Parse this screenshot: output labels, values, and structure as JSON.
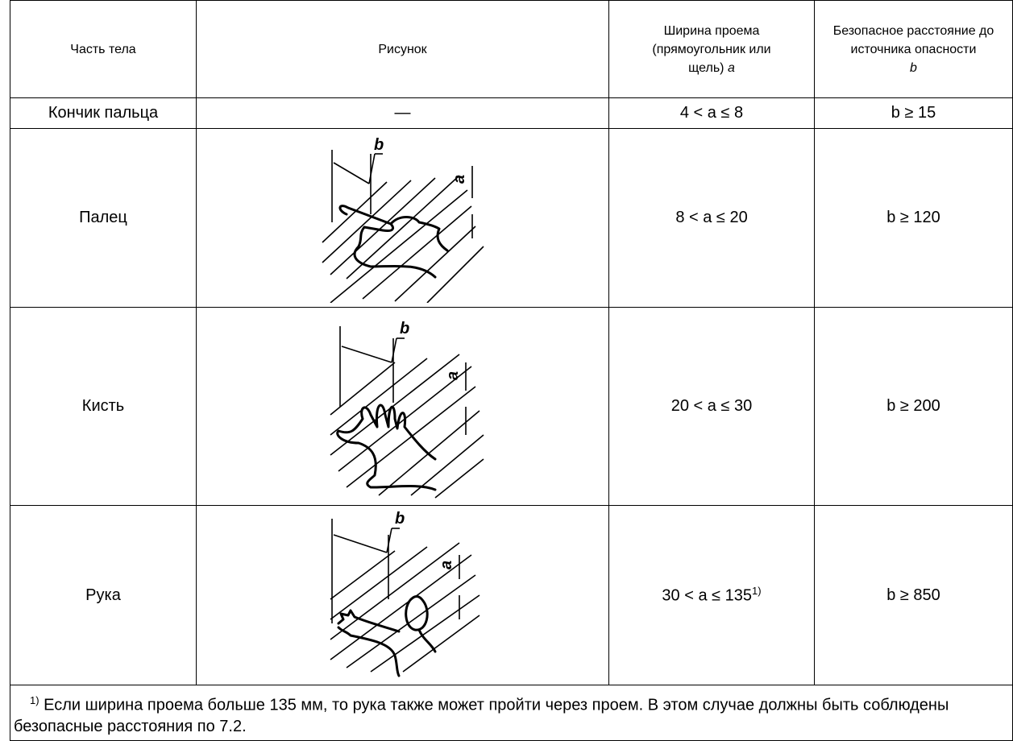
{
  "table": {
    "header": [
      {
        "text": "Часть тела"
      },
      {
        "text": "Рисунок"
      },
      {
        "text": "Ширина проема (прямоугольник или щель)",
        "symbol": "a"
      },
      {
        "text": "Безопасное расстояние до источника опасности",
        "symbol": "b"
      }
    ],
    "rows": [
      {
        "part": "Кончик пальца",
        "figure": "—",
        "opening": "4 < a ≤ 8",
        "distance": "b ≥ 15"
      },
      {
        "part": "Палец",
        "figure_labels": [
          "b",
          "a"
        ],
        "opening": "8 < a ≤ 20",
        "distance": "b ≥ 120"
      },
      {
        "part": "Кисть",
        "figure_labels": [
          "b",
          "a"
        ],
        "opening": "20 < a ≤ 30",
        "distance": "b ≥ 200"
      },
      {
        "part": "Рука",
        "figure_labels": [
          "b",
          "a"
        ],
        "opening": "30 < a ≤ 135",
        "opening_note": "1)",
        "distance": "b ≥ 850"
      }
    ]
  },
  "footnote": {
    "ref": "1)",
    "text": "Если ширина проема больше 135 мм, то рука также может пройти через проем. В этом случае должны быть соблюдены безопасные расстояния по 7.2."
  }
}
